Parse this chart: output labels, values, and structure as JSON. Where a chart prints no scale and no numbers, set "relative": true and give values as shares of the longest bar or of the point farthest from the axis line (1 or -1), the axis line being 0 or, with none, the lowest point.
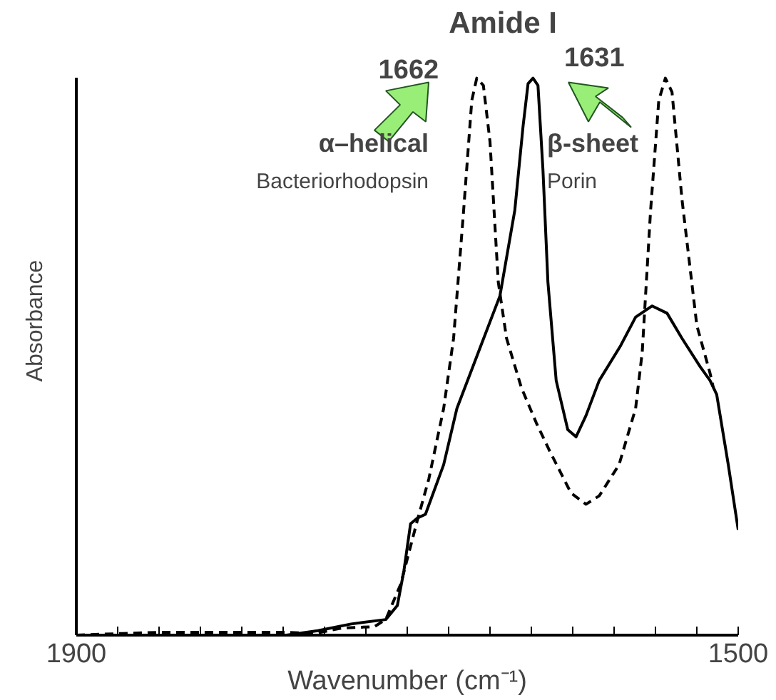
{
  "chart_data": {
    "type": "line",
    "relative": true,
    "xlabel": "Wavenumber (cm⁻¹)",
    "ylabel": "Absorbance",
    "xlim": [
      1900,
      1500
    ],
    "xticks": [
      1900,
      {
        "value": 1875,
        "label": null
      },
      {
        "value": 1850,
        "label": null
      },
      {
        "value": 1825,
        "label": null
      },
      {
        "value": 1800,
        "label": null
      },
      {
        "value": 1775,
        "label": null
      },
      {
        "value": 1750,
        "label": null
      },
      {
        "value": 1725,
        "label": null
      },
      {
        "value": 1700,
        "label": null
      },
      {
        "value": 1675,
        "label": null
      },
      {
        "value": 1650,
        "label": null
      },
      {
        "value": 1625,
        "label": null
      },
      {
        "value": 1600,
        "label": null
      },
      {
        "value": 1575,
        "label": null
      },
      {
        "value": 1550,
        "label": null
      },
      {
        "value": 1525,
        "label": null
      },
      1500
    ],
    "grid": false,
    "marker": "none",
    "series": [
      {
        "color": "#000000",
        "line_style": "solid",
        "x": [
          1900,
          1851,
          1773,
          1754,
          1734,
          1713,
          1706,
          1702,
          1698,
          1694,
          1689,
          1678,
          1670,
          1657,
          1644,
          1635,
          1630,
          1627,
          1624,
          1621,
          1618,
          1615,
          1610,
          1603,
          1598,
          1592,
          1584,
          1571,
          1562,
          1552,
          1543,
          1534,
          1523,
          1517,
          1513,
          1506,
          1500
        ],
        "values": [
          0,
          0,
          0,
          0.008,
          0.02,
          0.028,
          0.053,
          0.116,
          0.2,
          0.21,
          0.217,
          0.306,
          0.407,
          0.508,
          0.609,
          0.763,
          0.914,
          0.99,
          1.0,
          0.987,
          0.836,
          0.634,
          0.457,
          0.369,
          0.356,
          0.394,
          0.457,
          0.52,
          0.571,
          0.591,
          0.578,
          0.533,
          0.482,
          0.457,
          0.432,
          0.306,
          0.189
        ]
      },
      {
        "color": "#000000",
        "line_style": "dashed",
        "x": [
          1900,
          1872,
          1851,
          1773,
          1756,
          1739,
          1720,
          1713,
          1704,
          1694,
          1687,
          1678,
          1672,
          1666,
          1661,
          1658,
          1654,
          1650,
          1645,
          1640,
          1631,
          1622,
          1614,
          1601,
          1592,
          1584,
          1572,
          1562,
          1558,
          1553,
          1548,
          1544,
          1540,
          1534,
          1525,
          1517,
          1515
        ],
        "values": [
          0,
          0.003,
          0.005,
          0.005,
          0.003,
          0.013,
          0.015,
          0.028,
          0.091,
          0.205,
          0.28,
          0.407,
          0.533,
          0.76,
          0.96,
          1.0,
          0.987,
          0.886,
          0.634,
          0.533,
          0.444,
          0.381,
          0.331,
          0.255,
          0.235,
          0.25,
          0.306,
          0.407,
          0.508,
          0.76,
          0.96,
          1.0,
          0.975,
          0.783,
          0.556,
          0.47,
          0.444
        ]
      }
    ],
    "annotations": [
      "Amide I",
      {
        "text": "1662",
        "x": 1662,
        "y": 1.0
      },
      "1631",
      "α–helical",
      "Bacteriorhodopsin",
      "β-sheet",
      "Porin"
    ]
  }
}
